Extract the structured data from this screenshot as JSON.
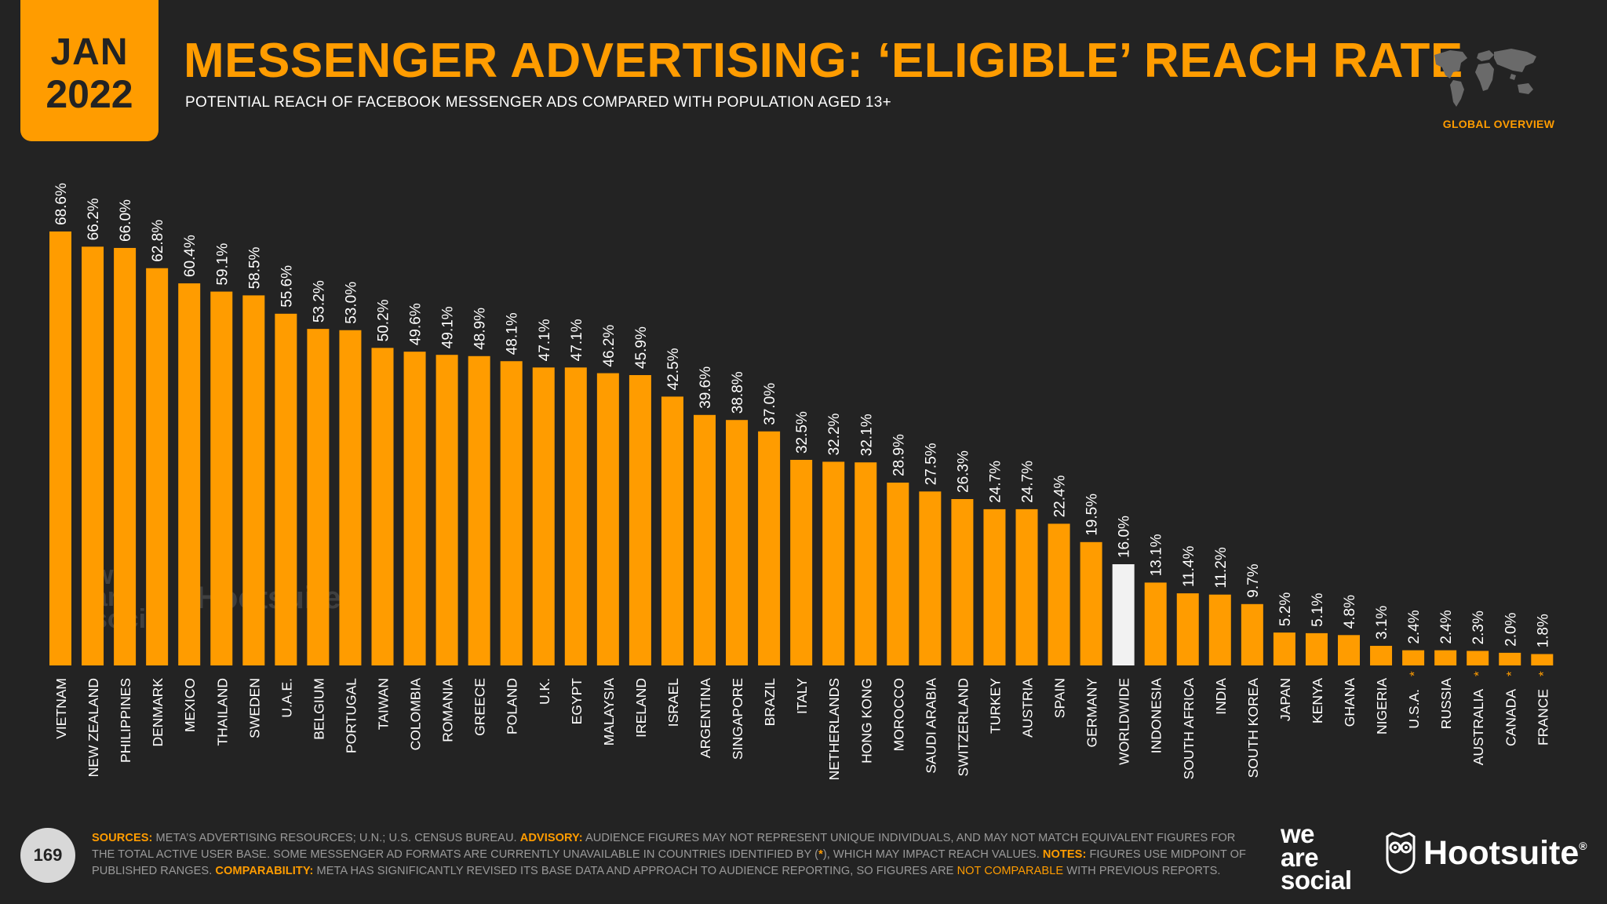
{
  "badge": {
    "month": "JAN",
    "year": "2022"
  },
  "header": {
    "title": "MESSENGER ADVERTISING: ‘ELIGIBLE’ REACH RATE",
    "subtitle": "POTENTIAL REACH OF FACEBOOK MESSENGER ADS COMPARED WITH POPULATION AGED 13+"
  },
  "corner": {
    "label": "GLOBAL OVERVIEW"
  },
  "colors": {
    "accent": "#ff9c00",
    "highlight": "#f2f2f2",
    "background": "#232323",
    "text": "#ffffff",
    "muted": "#9a9a9a"
  },
  "chart_data": {
    "type": "bar",
    "title": "MESSENGER ADVERTISING: ‘ELIGIBLE’ REACH RATE",
    "xlabel": "",
    "ylabel": "",
    "ylim": [
      0,
      70
    ],
    "grid": false,
    "legend": "none",
    "highlight_category": "WORLDWIDE",
    "value_format": "{v}%",
    "categories": [
      "VIETNAM",
      "NEW ZEALAND",
      "PHILIPPINES",
      "DENMARK",
      "MEXICO",
      "THAILAND",
      "SWEDEN",
      "U.A.E.",
      "BELGIUM",
      "PORTUGAL",
      "TAIWAN",
      "COLOMBIA",
      "ROMANIA",
      "GREECE",
      "POLAND",
      "U.K.",
      "EGYPT",
      "MALAYSIA",
      "IRELAND",
      "ISRAEL",
      "ARGENTINA",
      "SINGAPORE",
      "BRAZIL",
      "ITALY",
      "NETHERLANDS",
      "HONG KONG",
      "MOROCCO",
      "SAUDI ARABIA",
      "SWITZERLAND",
      "TURKEY",
      "AUSTRIA",
      "SPAIN",
      "GERMANY",
      "WORLDWIDE",
      "INDONESIA",
      "SOUTH AFRICA",
      "INDIA",
      "SOUTH KOREA",
      "JAPAN",
      "KENYA",
      "GHANA",
      "NIGERIA",
      "U.S.A.",
      "RUSSIA",
      "AUSTRALIA",
      "CANADA",
      "FRANCE"
    ],
    "values": [
      68.6,
      66.2,
      66.0,
      62.8,
      60.4,
      59.1,
      58.5,
      55.6,
      53.2,
      53.0,
      50.2,
      49.6,
      49.1,
      48.9,
      48.1,
      47.1,
      47.1,
      46.2,
      45.9,
      42.5,
      39.6,
      38.8,
      37.0,
      32.5,
      32.2,
      32.1,
      28.9,
      27.5,
      26.3,
      24.7,
      24.7,
      22.4,
      19.5,
      16.0,
      13.1,
      11.4,
      11.2,
      9.7,
      5.2,
      5.1,
      4.8,
      3.1,
      2.4,
      2.4,
      2.3,
      2.0,
      1.8
    ],
    "value_labels": [
      "68.6%",
      "66.2%",
      "66.0%",
      "62.8%",
      "60.4%",
      "59.1%",
      "58.5%",
      "55.6%",
      "53.2%",
      "53.0%",
      "50.2%",
      "49.6%",
      "49.1%",
      "48.9%",
      "48.1%",
      "47.1%",
      "47.1%",
      "46.2%",
      "45.9%",
      "42.5%",
      "39.6%",
      "38.8%",
      "37.0%",
      "32.5%",
      "32.2%",
      "32.1%",
      "28.9%",
      "27.5%",
      "26.3%",
      "24.7%",
      "24.7%",
      "22.4%",
      "19.5%",
      "16.0%",
      "13.1%",
      "11.4%",
      "11.2%",
      "9.7%",
      "5.2%",
      "5.1%",
      "4.8%",
      "3.1%",
      "2.4%",
      "2.4%",
      "2.3%",
      "2.0%",
      "1.8%"
    ],
    "asterisk": [
      false,
      false,
      false,
      false,
      false,
      false,
      false,
      false,
      false,
      false,
      false,
      false,
      false,
      false,
      false,
      false,
      false,
      false,
      false,
      false,
      false,
      false,
      false,
      false,
      false,
      false,
      false,
      false,
      false,
      false,
      false,
      false,
      false,
      false,
      false,
      false,
      false,
      false,
      false,
      false,
      false,
      false,
      true,
      false,
      true,
      true,
      true
    ]
  },
  "watermark": {
    "brand1_line1": "we",
    "brand1_line2": "are",
    "brand1_line3": "social",
    "brand2": "Hootsuite"
  },
  "footer": {
    "page_number": "169",
    "sources_label": "SOURCES:",
    "sources_text": " META’S ADVERTISING RESOURCES; U.N.; U.S. CENSUS BUREAU. ",
    "advisory_label": "ADVISORY:",
    "advisory_text_1": " AUDIENCE FIGURES MAY NOT REPRESENT UNIQUE INDIVIDUALS, AND MAY NOT MATCH EQUIVALENT FIGURES FOR THE TOTAL ACTIVE USER BASE. SOME MESSENGER AD FORMATS ARE CURRENTLY UNAVAILABLE IN COUNTRIES IDENTIFIED BY (",
    "advisory_asterisk": "*",
    "advisory_text_2": "), WHICH MAY IMPACT REACH VALUES. ",
    "notes_label": "NOTES:",
    "notes_text": " FIGURES USE MIDPOINT OF PUBLISHED RANGES. ",
    "comparability_label": "COMPARABILITY:",
    "comparability_text": " META HAS SIGNIFICANTLY REVISED ITS BASE DATA AND APPROACH TO AUDIENCE REPORTING, SO FIGURES ARE ",
    "not_comparable": "NOT COMPARABLE",
    "comparability_tail": " WITH PREVIOUS REPORTS.",
    "logo_was_1": "we",
    "logo_was_2": "are",
    "logo_was_3": "social",
    "logo_hootsuite": "Hootsuite",
    "logo_reg": "®"
  }
}
